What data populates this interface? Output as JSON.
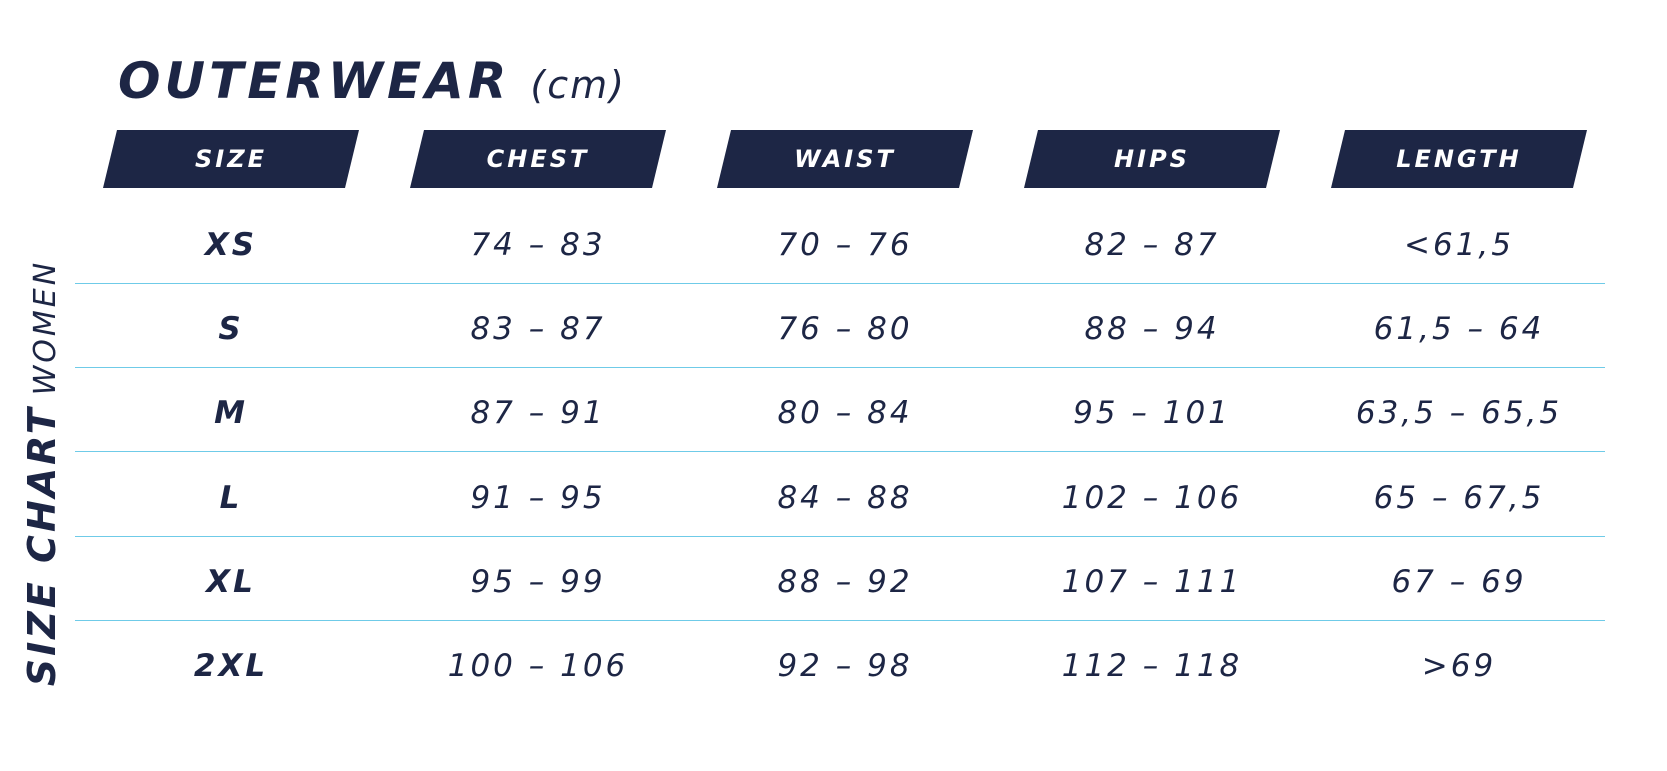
{
  "side_label": {
    "strong": "SIZE CHART",
    "light": "WOMEN"
  },
  "title": {
    "main": "OUTERWEAR",
    "unit": "(cm)"
  },
  "table": {
    "headers": [
      "SIZE",
      "CHEST",
      "WAIST",
      "HIPS",
      "LENGTH"
    ],
    "rows": [
      [
        "XS",
        "74 – 83",
        "70 – 76",
        "82 – 87",
        "<61,5"
      ],
      [
        "S",
        "83 – 87",
        "76 – 80",
        "88 – 94",
        "61,5 – 64"
      ],
      [
        "M",
        "87 – 91",
        "80 – 84",
        "95 – 101",
        "63,5 – 65,5"
      ],
      [
        "L",
        "91 – 95",
        "84 – 88",
        "102 – 106",
        "65 – 67,5"
      ],
      [
        "XL",
        "95 – 99",
        "88 – 92",
        "107 – 111",
        "67 – 69"
      ],
      [
        "2XL",
        "100 – 106",
        "92 – 98",
        "112 – 118",
        ">69"
      ]
    ]
  },
  "colors": {
    "navy": "#1d2645",
    "separator": "#6fcbe8"
  }
}
